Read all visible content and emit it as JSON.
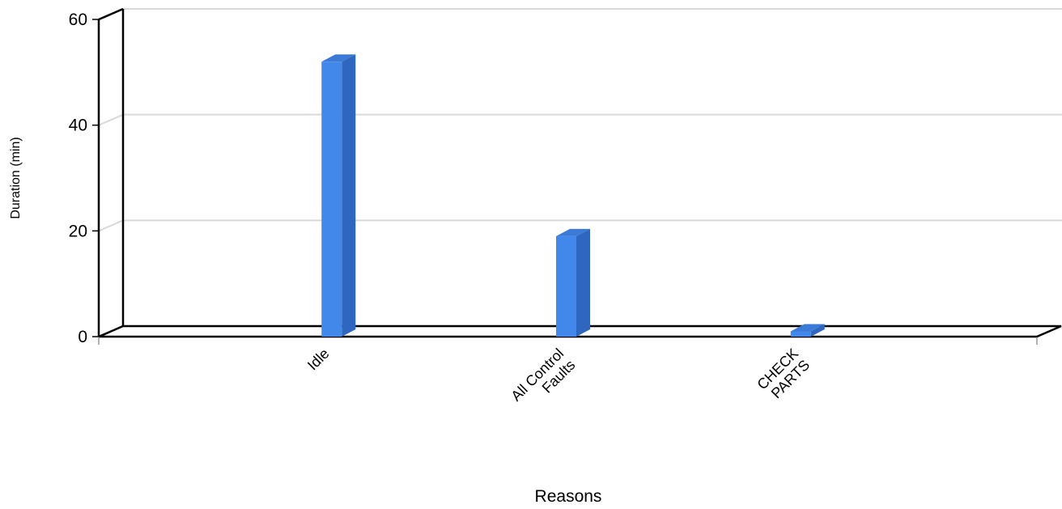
{
  "chart_data": {
    "type": "bar",
    "style": "3d-column",
    "categories": [
      "Idle",
      "All Control Faults",
      "CHECK PARTS"
    ],
    "category_label_lines": [
      [
        "Idle"
      ],
      [
        "All Control",
        "Faults"
      ],
      [
        "CHECK",
        "PARTS"
      ]
    ],
    "values": [
      52,
      19,
      1
    ],
    "xlabel": "Reasons",
    "ylabel": "Duration (min)",
    "ylim": [
      0,
      60
    ],
    "yticks": [
      0,
      20,
      40,
      60
    ],
    "grid": true,
    "legend": "none",
    "colors": {
      "bar_front": "#4287ea",
      "bar_side": "#2f66bf",
      "bar_top": "#3b7ad6",
      "grid": "#d9d9d9",
      "axis": "#000000"
    }
  }
}
